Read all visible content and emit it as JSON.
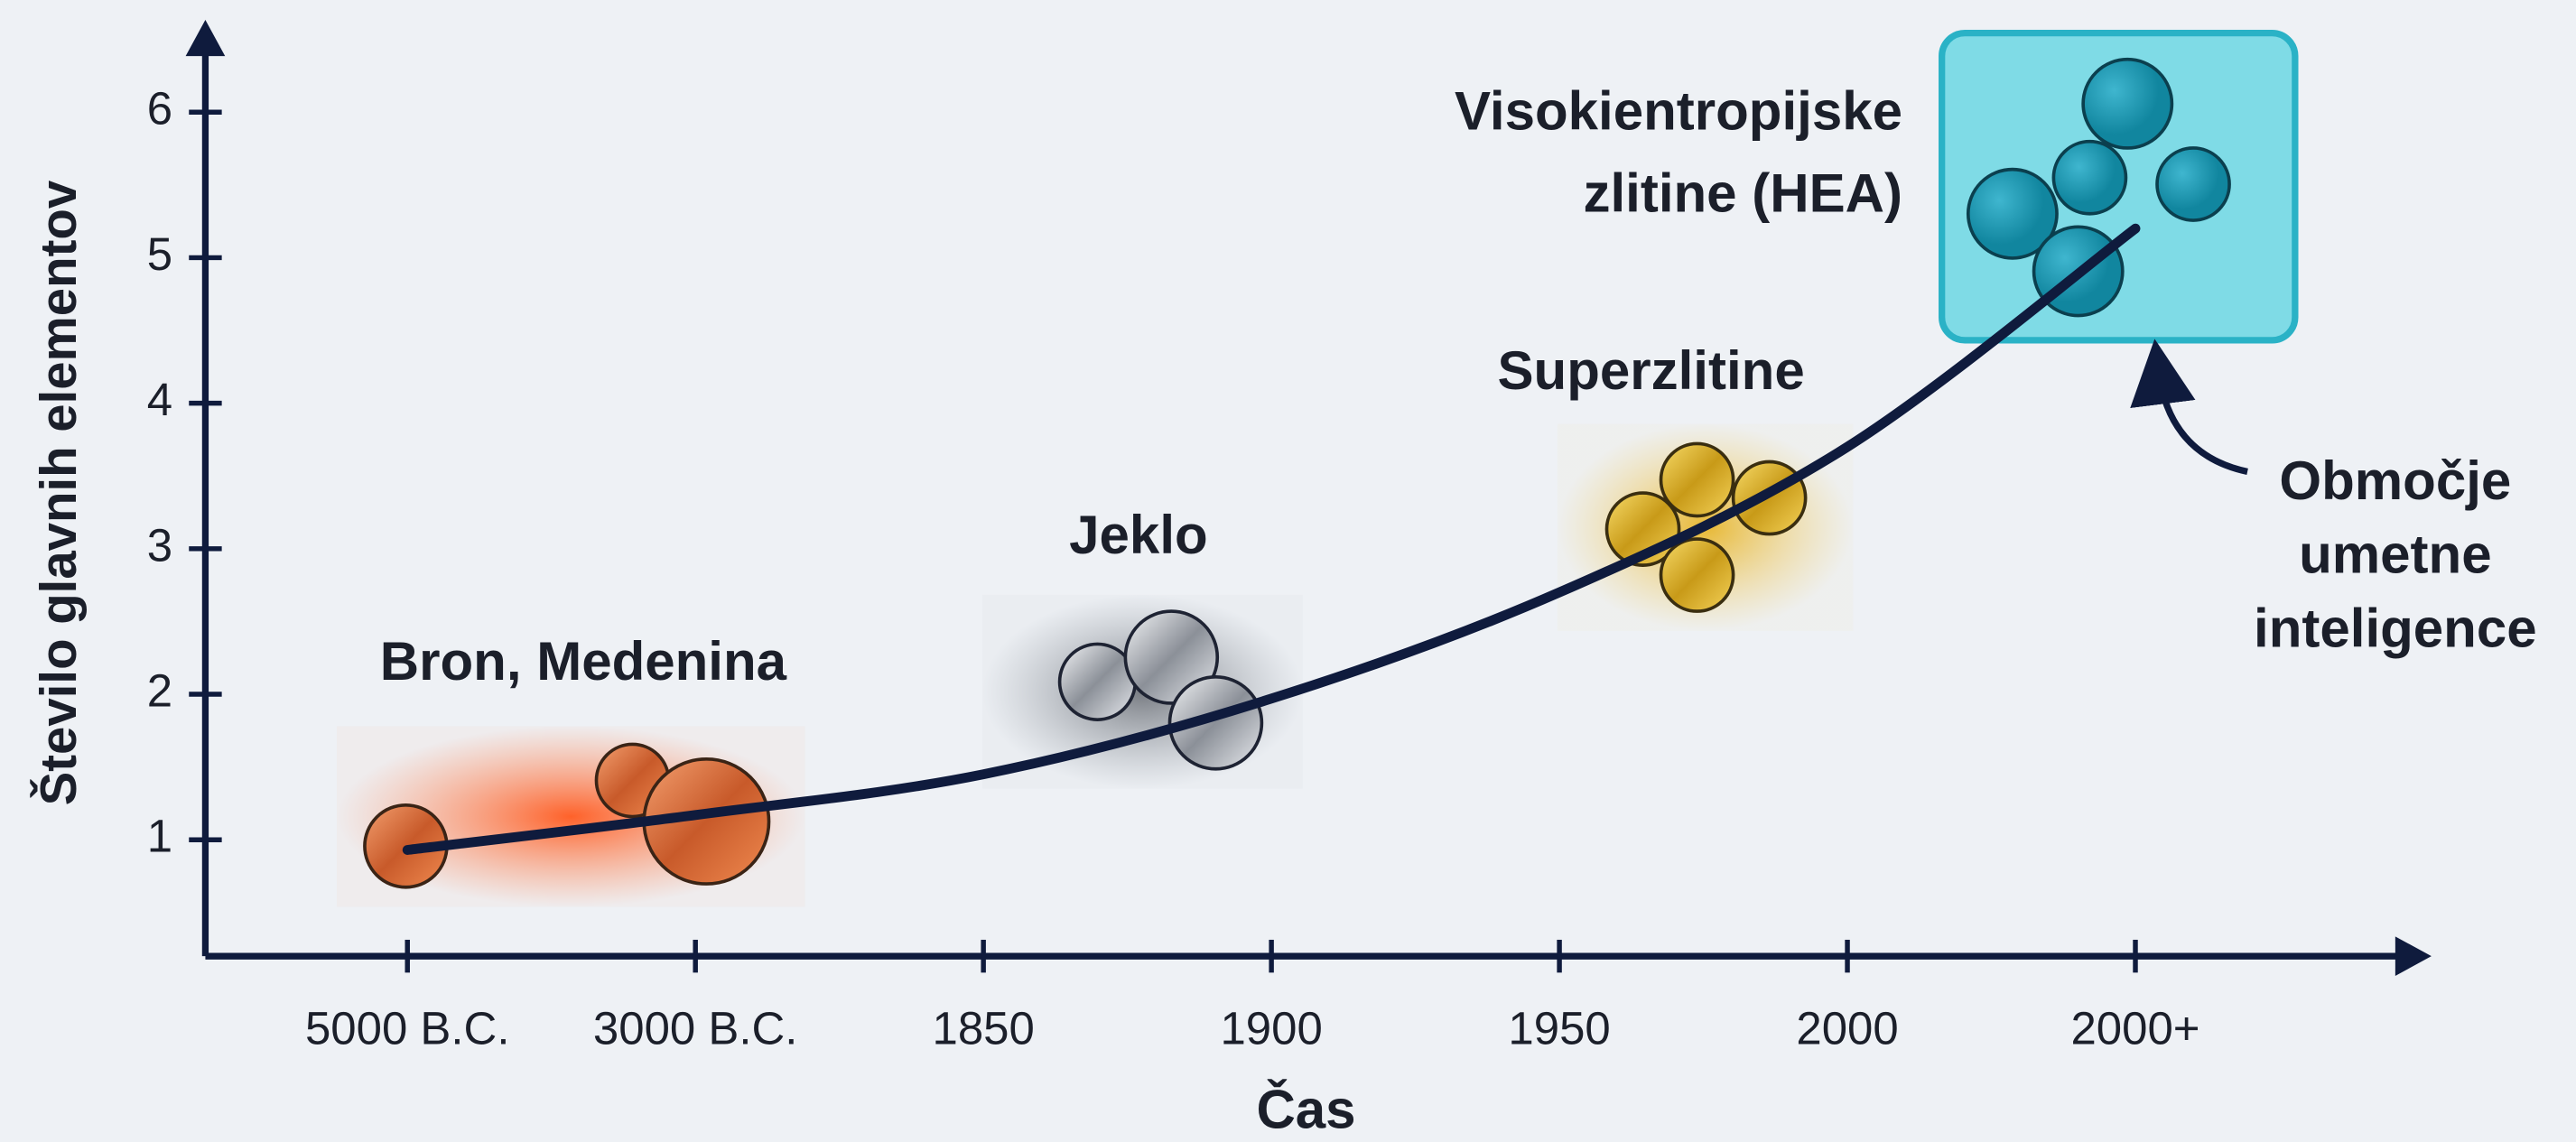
{
  "chart_data": {
    "type": "line",
    "x_label": "Čas",
    "y_label": "Število glavnih elementov",
    "categories": [
      "5000 B.C.",
      "3000 B.C.",
      "1850",
      "1900",
      "1950",
      "2000",
      "2000+"
    ],
    "series": [
      {
        "color": "#0f1b3d",
        "values": [
          0.93,
          1.17,
          1.45,
          1.97,
          2.7,
          3.7,
          5.2
        ]
      }
    ],
    "ylim": [
      0.2,
      6.6
    ],
    "yticks": [
      1,
      2,
      3,
      4,
      5,
      6
    ],
    "annotations": {
      "bronze": "Bron, Medenina",
      "steel": "Jeklo",
      "superalloys": "Superzlitine",
      "hea": [
        "Visokientropijske",
        "zlitine (HEA)"
      ],
      "ai": [
        "Območje",
        "umetne",
        "inteligence"
      ]
    }
  }
}
